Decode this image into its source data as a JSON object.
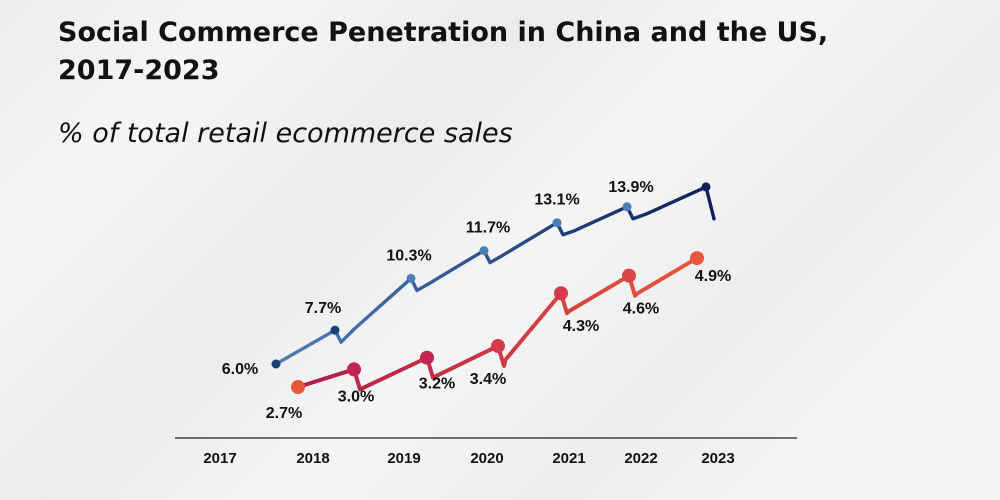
{
  "title_line1": "Social Commerce Penetration in China and the US,",
  "title_line2": "2017-2023",
  "subtitle": "% of total retail ecommerce sales",
  "chart_data": {
    "type": "line",
    "categories": [
      "2017",
      "2018",
      "2019",
      "2020",
      "2021",
      "2022",
      "2023"
    ],
    "series": [
      {
        "values": [
          6.0,
          7.7,
          10.3,
          11.7,
          13.1,
          13.9,
          14.9
        ],
        "labels": [
          "6.0%",
          "7.7%",
          "10.3%",
          "11.7%",
          "13.1%",
          "13.9%",
          ""
        ],
        "colors": [
          "#4a7fb5",
          "#0e1f5b"
        ]
      },
      {
        "values": [
          2.7,
          3.0,
          3.2,
          3.4,
          4.3,
          4.6,
          4.9
        ],
        "labels": [
          "2.7%",
          "3.0%",
          "3.2%",
          "3.4%",
          "4.3%",
          "4.6%",
          "4.9%"
        ],
        "colors": [
          "#b01c4a",
          "#e8563a"
        ]
      }
    ],
    "grid": false,
    "legend": "none"
  }
}
